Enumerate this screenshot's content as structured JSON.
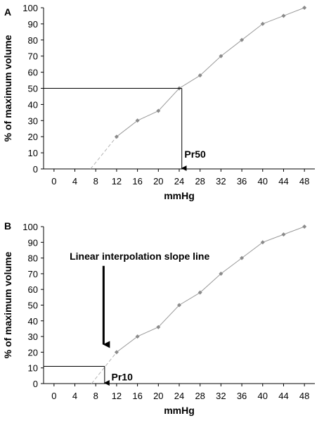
{
  "chart_data": [
    {
      "type": "line",
      "panel_label": "A",
      "xlabel": "mmHg",
      "ylabel": "% of maximum volume",
      "x_ticks": [
        0,
        4,
        8,
        12,
        16,
        20,
        24,
        28,
        32,
        36,
        40,
        44,
        48
      ],
      "y_ticks": [
        0,
        10,
        20,
        30,
        40,
        50,
        60,
        70,
        80,
        90,
        100
      ],
      "xlim": [
        -2,
        50
      ],
      "ylim": [
        0,
        100
      ],
      "grid": false,
      "series": [
        {
          "x": [
            12,
            16,
            20,
            24,
            28,
            32,
            36,
            40,
            44,
            48
          ],
          "y": [
            20,
            30,
            36,
            50,
            58,
            70,
            80,
            90,
            95,
            100
          ]
        }
      ],
      "extrapolation": {
        "x": [
          7,
          12
        ],
        "y": [
          0,
          20
        ]
      },
      "reference": {
        "x": 24.5,
        "y": 50,
        "arrow_to_y": 0
      },
      "annotations": [
        {
          "text": "Pr50",
          "x": 25,
          "y": 7
        }
      ]
    },
    {
      "type": "line",
      "panel_label": "B",
      "xlabel": "mmHg",
      "ylabel": "% of maximum volume",
      "x_ticks": [
        0,
        4,
        8,
        12,
        16,
        20,
        24,
        28,
        32,
        36,
        40,
        44,
        48
      ],
      "y_ticks": [
        0,
        10,
        20,
        30,
        40,
        50,
        60,
        70,
        80,
        90,
        100
      ],
      "xlim": [
        -2,
        50
      ],
      "ylim": [
        0,
        100
      ],
      "grid": false,
      "series": [
        {
          "x": [
            12,
            16,
            20,
            24,
            28,
            32,
            36,
            40,
            44,
            48
          ],
          "y": [
            20,
            30,
            36,
            50,
            58,
            70,
            80,
            90,
            95,
            100
          ]
        }
      ],
      "extrapolation": {
        "x": [
          7.2,
          12
        ],
        "y": [
          0,
          20
        ]
      },
      "reference": {
        "x": 9.7,
        "y": 11,
        "arrow_to_y": 0
      },
      "interpolation_arrow": {
        "x": 9.5,
        "y_from": 75,
        "y_to": 24
      },
      "annotations": [
        {
          "text": "Linear interpolation slope line",
          "x": 3,
          "y": 79
        },
        {
          "text": "Pr10",
          "x": 11,
          "y": 2
        }
      ]
    }
  ]
}
